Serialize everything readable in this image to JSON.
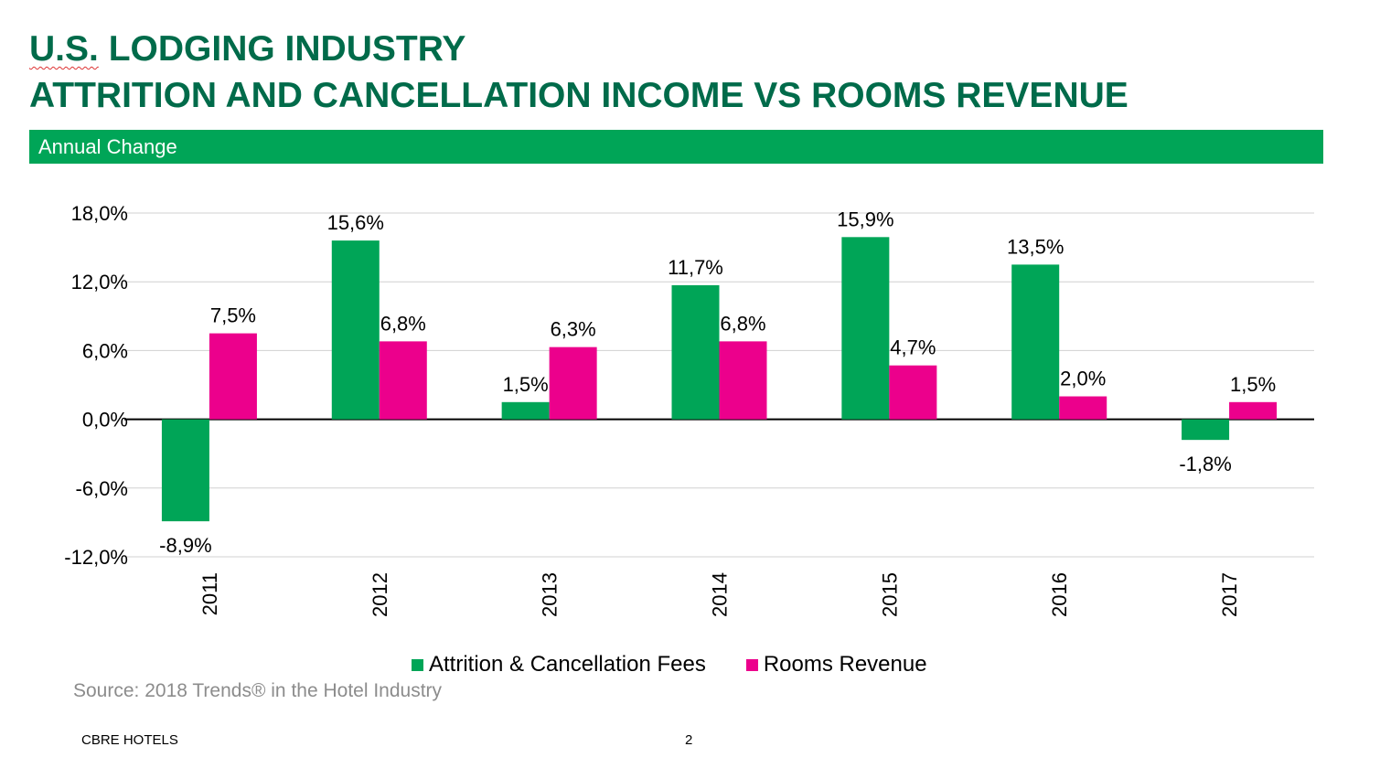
{
  "header": {
    "title_line1_prefix": "U.S.",
    "title_line1_rest": " LODGING INDUSTRY",
    "title_line2": "ATTRITION AND CANCELLATION INCOME VS ROOMS REVENUE",
    "subtitle_band": "Annual Change"
  },
  "colors": {
    "title": "#006b4a",
    "band": "#00a557",
    "attrition": "#00a557",
    "rooms": "#ec008c"
  },
  "chart_data": {
    "type": "bar",
    "categories": [
      "2011",
      "2012",
      "2013",
      "2014",
      "2015",
      "2016",
      "2017"
    ],
    "series": [
      {
        "name": "Attrition & Cancellation Fees",
        "values": [
          -8.9,
          15.6,
          1.5,
          11.7,
          15.9,
          13.5,
          -1.8
        ],
        "labels": [
          "-8,9%",
          "15,6%",
          "1,5%",
          "11,7%",
          "15,9%",
          "13,5%",
          "-1,8%"
        ],
        "color": "#00a557"
      },
      {
        "name": "Rooms Revenue",
        "values": [
          7.5,
          6.8,
          6.3,
          6.8,
          4.7,
          2.0,
          1.5
        ],
        "labels": [
          "7,5%",
          "6,8%",
          "6,3%",
          "6,8%",
          "4,7%",
          "2,0%",
          "1,5%"
        ],
        "color": "#ec008c"
      }
    ],
    "yticks": [
      18,
      12,
      6,
      0,
      -6,
      -12
    ],
    "ytick_labels": [
      "18,0%",
      "12,0%",
      "6,0%",
      "0,0%",
      "-6,0%",
      "-12,0%"
    ],
    "ylim": [
      -12,
      18
    ],
    "grid": true,
    "legend": "bottom",
    "xlabel": "",
    "ylabel": ""
  },
  "source": "Source: 2018 Trends® in the Hotel Industry",
  "footer": {
    "brand": "CBRE HOTELS",
    "page": "2"
  }
}
